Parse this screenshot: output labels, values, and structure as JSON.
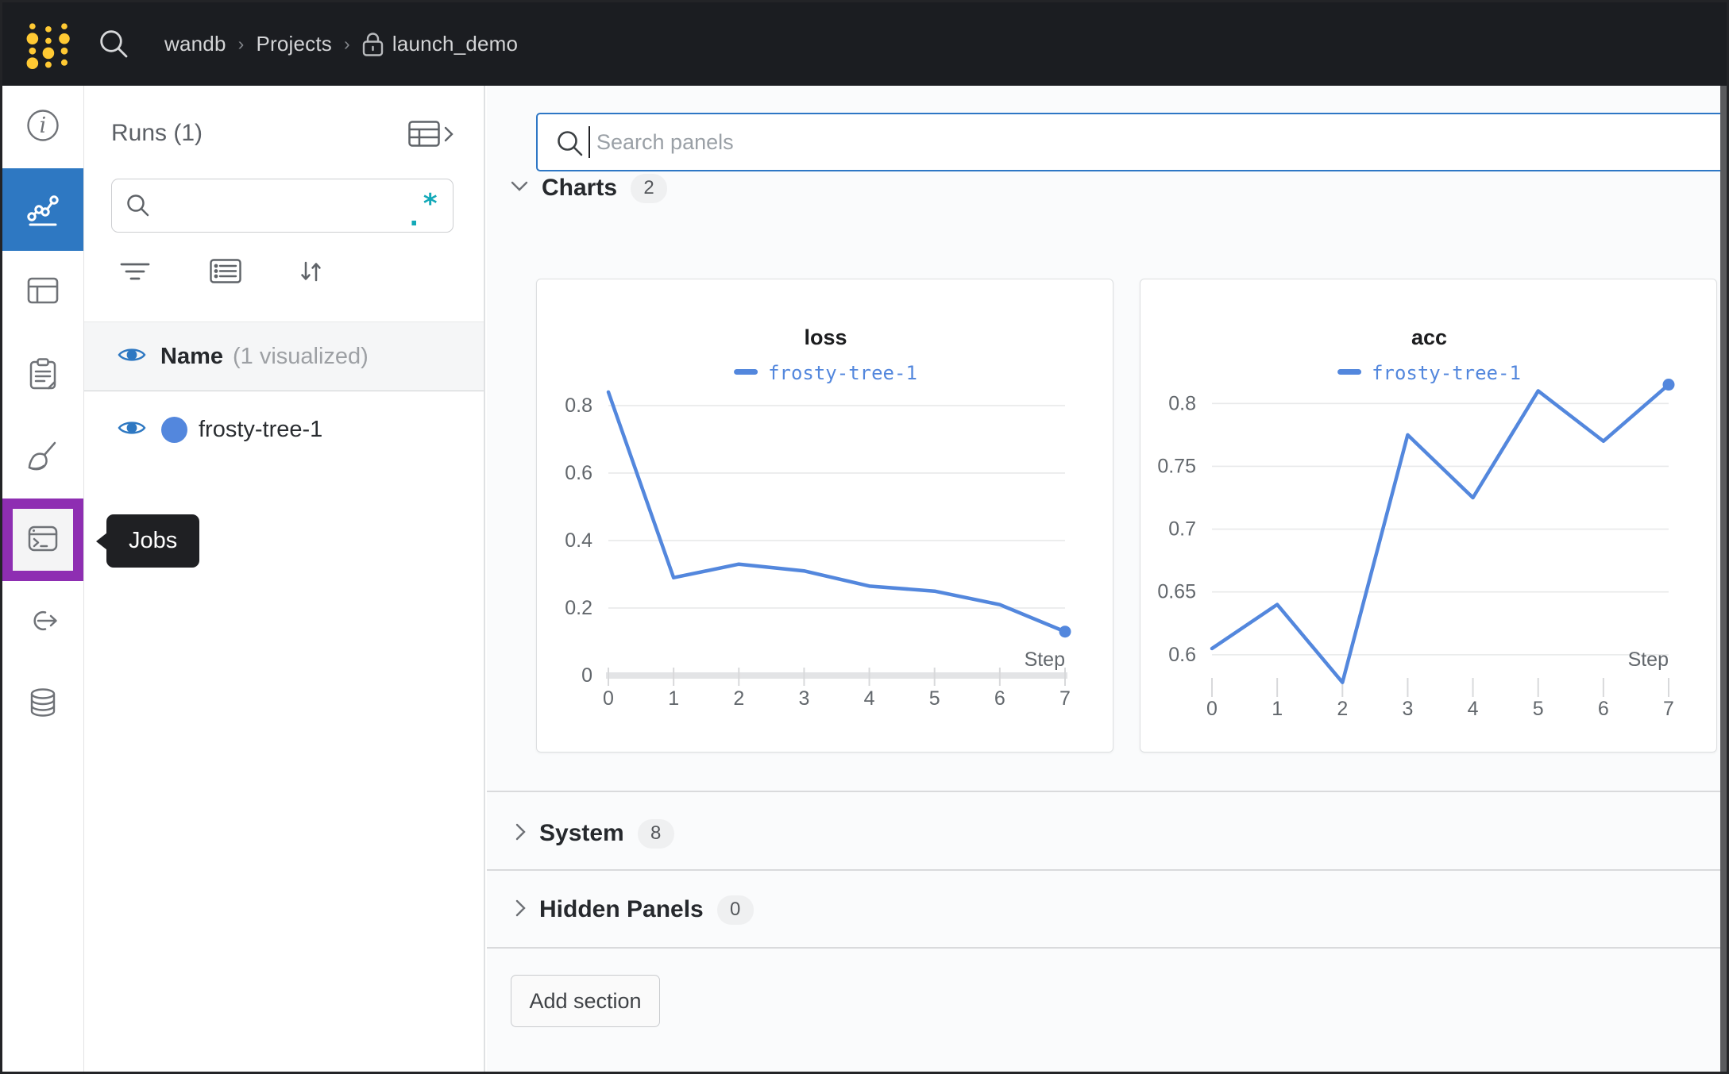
{
  "topbar": {
    "separator": "›",
    "breadcrumb": [
      {
        "label": "wandb"
      },
      {
        "label": "Projects"
      },
      {
        "label": "launch_demo",
        "locked": true
      }
    ]
  },
  "sidebar": {
    "tooltip": "Jobs",
    "items": [
      {
        "name": "overview",
        "icon": "info-icon",
        "selected": false,
        "highlighted": false
      },
      {
        "name": "charts",
        "icon": "line-chart-icon",
        "selected": true,
        "highlighted": false
      },
      {
        "name": "tables",
        "icon": "table-icon",
        "selected": false,
        "highlighted": false
      },
      {
        "name": "notes",
        "icon": "clipboard-icon",
        "selected": false,
        "highlighted": false
      },
      {
        "name": "sweeps",
        "icon": "broom-icon",
        "selected": false,
        "highlighted": false
      },
      {
        "name": "jobs",
        "icon": "terminal-icon",
        "selected": false,
        "highlighted": true
      },
      {
        "name": "launch",
        "icon": "link-arrow-icon",
        "selected": false,
        "highlighted": false
      },
      {
        "name": "artifacts",
        "icon": "database-icon",
        "selected": false,
        "highlighted": false
      }
    ]
  },
  "runs_panel": {
    "title": "Runs (1)",
    "search_placeholder": "",
    "regex_icon": ".*",
    "header": {
      "name": "Name",
      "visualized": "(1 visualized)"
    },
    "runs": [
      {
        "name": "frosty-tree-1",
        "color": "#5387dd",
        "visible": true
      }
    ]
  },
  "main": {
    "search_placeholder": "Search panels",
    "sections": {
      "charts": {
        "label": "Charts",
        "count": "2",
        "expanded": true
      },
      "system": {
        "label": "System",
        "count": "8",
        "expanded": false
      },
      "hidden": {
        "label": "Hidden Panels",
        "count": "0",
        "expanded": false
      }
    },
    "add_section": "Add section"
  },
  "colors": {
    "accent_blue": "#2e78c2",
    "run_blue": "#5387dd",
    "highlight_purple": "#8e2eb2",
    "regex_teal": "#13a9b8",
    "logo_yellow": "#ffc933",
    "topbar_bg": "#1b1d21"
  },
  "chart_data": [
    {
      "type": "line",
      "title": "loss",
      "xlabel": "Step",
      "legend": "frosty-tree-1",
      "color": "#5387dd",
      "x": [
        0,
        1,
        2,
        3,
        4,
        5,
        6,
        7
      ],
      "y": [
        0.84,
        0.29,
        0.33,
        0.31,
        0.265,
        0.25,
        0.21,
        0.13
      ],
      "xticks": [
        0,
        1,
        2,
        3,
        4,
        5,
        6,
        7
      ],
      "yticks": [
        0,
        0.2,
        0.4,
        0.6,
        0.8
      ],
      "ylim": [
        0,
        0.861
      ],
      "baseline": true,
      "end_dot": true,
      "grid": "horizontal",
      "legend_position": "top"
    },
    {
      "type": "line",
      "title": "acc",
      "xlabel": "Step",
      "legend": "frosty-tree-1",
      "color": "#5387dd",
      "x": [
        0,
        1,
        2,
        3,
        4,
        5,
        6,
        7
      ],
      "y": [
        0.605,
        0.64,
        0.578,
        0.775,
        0.725,
        0.81,
        0.77,
        0.815
      ],
      "xticks": [
        0,
        1,
        2,
        3,
        4,
        5,
        6,
        7
      ],
      "yticks": [
        0.6,
        0.65,
        0.7,
        0.75,
        0.8
      ],
      "ylim": [
        0.5835,
        0.8147
      ],
      "baseline": false,
      "end_dot": true,
      "grid": "horizontal",
      "legend_position": "top"
    }
  ]
}
